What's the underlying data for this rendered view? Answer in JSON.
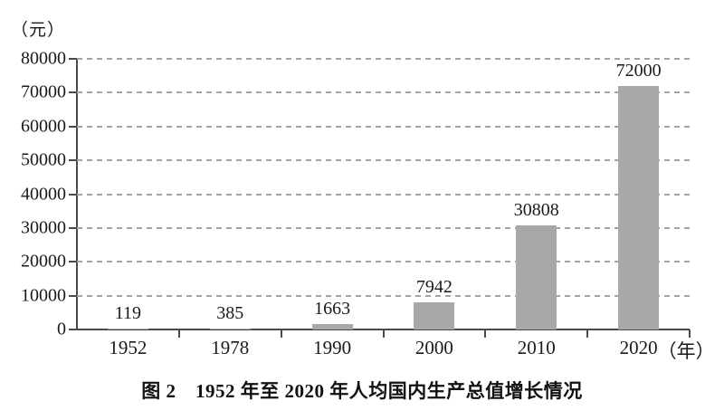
{
  "chart_data": {
    "type": "bar",
    "title": "图 2　1952 年至 2020 年人均国内生产总值增长情况",
    "categories": [
      "1952",
      "1978",
      "1990",
      "2000",
      "2010",
      "2020"
    ],
    "values": [
      119,
      385,
      1663,
      7942,
      30808,
      72000
    ],
    "value_labels": [
      "119",
      "385",
      "1663",
      "7942",
      "30808",
      "72000"
    ],
    "ylabel": "（元）",
    "xlabel": "（年）",
    "ylim": [
      0,
      80000
    ],
    "ytick_step": 10000,
    "ytick_labels": [
      "0",
      "10000",
      "20000",
      "30000",
      "40000",
      "50000",
      "60000",
      "70000",
      "80000"
    ],
    "grid": true,
    "legend": "none",
    "bar_color": "#a8a8a8",
    "gridline_color": "#a3a3a3",
    "axis_color": "#4a4a4a"
  }
}
